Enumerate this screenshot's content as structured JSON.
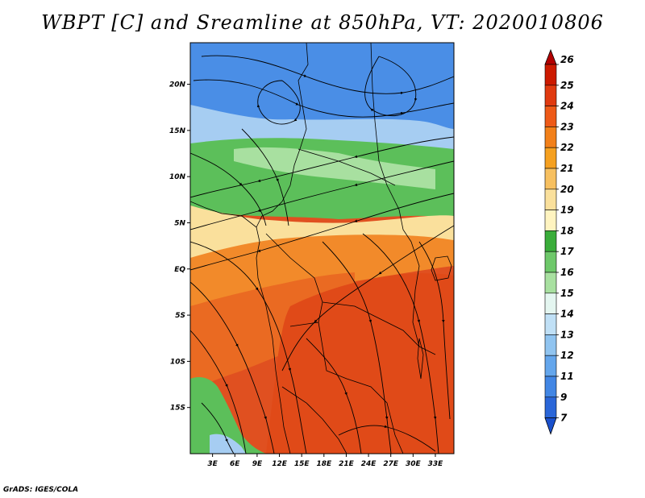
{
  "title": "WBPT [C] and Sreamline at 850hPa, VT: 2020010806",
  "credit": "GrADS: IGES/COLA",
  "map": {
    "lat_range": [
      -20,
      24.5
    ],
    "lon_range": [
      0,
      35.5
    ],
    "lat_ticks": [
      {
        "value": 20,
        "label": "20N"
      },
      {
        "value": 15,
        "label": "15N"
      },
      {
        "value": 10,
        "label": "10N"
      },
      {
        "value": 5,
        "label": "5N"
      },
      {
        "value": 0,
        "label": "EQ"
      },
      {
        "value": -5,
        "label": "5S"
      },
      {
        "value": -10,
        "label": "10S"
      },
      {
        "value": -15,
        "label": "15S"
      }
    ],
    "lon_ticks": [
      {
        "value": 3,
        "label": "3E"
      },
      {
        "value": 6,
        "label": "6E"
      },
      {
        "value": 9,
        "label": "9E"
      },
      {
        "value": 12,
        "label": "12E"
      },
      {
        "value": 15,
        "label": "15E"
      },
      {
        "value": 18,
        "label": "18E"
      },
      {
        "value": 21,
        "label": "21E"
      },
      {
        "value": 24,
        "label": "24E"
      },
      {
        "value": 27,
        "label": "27E"
      },
      {
        "value": 30,
        "label": "30E"
      },
      {
        "value": 33,
        "label": "33E"
      }
    ]
  },
  "colorbar": {
    "levels": [
      "26",
      "25",
      "24",
      "23",
      "22",
      "21",
      "20",
      "19",
      "18",
      "17",
      "16",
      "15",
      "14",
      "13",
      "12",
      "11",
      "9",
      "7"
    ],
    "colors": [
      "#b30000",
      "#cc1a00",
      "#e03a10",
      "#ee5a18",
      "#f2801a",
      "#f5a020",
      "#f7c060",
      "#fae09c",
      "#fff4c0",
      "#3aad3a",
      "#6ec86a",
      "#a8e0a0",
      "#e4f6f0",
      "#c0e0f6",
      "#90c4f0",
      "#64a6ec",
      "#4286e4",
      "#2a66d8",
      "#1a50cc"
    ]
  },
  "legend_icon": "triangle-arrow-icon"
}
